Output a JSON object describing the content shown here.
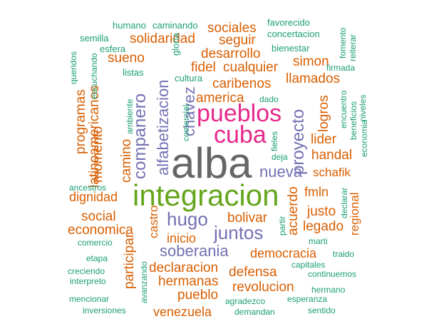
{
  "palette": {
    "teal": "#1b9e77",
    "orange": "#d95f02",
    "purple": "#7570b3",
    "pink": "#e7298a",
    "green": "#66a61e",
    "gray": "#666666"
  },
  "words": [
    "alba",
    "integracion",
    "cuba",
    "pueblos",
    "juntos",
    "hugo",
    "soberania",
    "nueva",
    "proyecto",
    "chavez",
    "alfabetizacion",
    "companero",
    "sociales",
    "seguir",
    "solidaridad",
    "desarrollo",
    "fidel",
    "cualquier",
    "simon",
    "llamados",
    "caribenos",
    "america",
    "sueno",
    "programas",
    "latinoamericanos",
    "momento",
    "camino",
    "logros",
    "lider",
    "handal",
    "schafik",
    "dignidad",
    "fmln",
    "social",
    "bolivar",
    "justo",
    "economica",
    "castro",
    "legado",
    "acuerdo",
    "regional",
    "inicio",
    "participar",
    "democracia",
    "declaracion",
    "defensa",
    "hermanas",
    "revolucion",
    "pueblo",
    "venezuela",
    "humano",
    "caminando",
    "favorecido",
    "semilla",
    "concertacion",
    "queridos",
    "esfera",
    "gloria",
    "bienestar",
    "fomento",
    "reiterar",
    "escuchando",
    "listas",
    "firmada",
    "cultura",
    "ambiente",
    "comercial",
    "dado",
    "encuentro",
    "beneficios",
    "niveles",
    "economia",
    "fieles",
    "deja",
    "ancestros",
    "declarar",
    "partir",
    "marti",
    "comercio",
    "etapa",
    "traido",
    "capitales",
    "creciendo",
    "avanzando",
    "continuemos",
    "interpreto",
    "mencionar",
    "hermano",
    "agradezco",
    "esperanza",
    "inversiones",
    "demandan",
    "sentido"
  ]
}
